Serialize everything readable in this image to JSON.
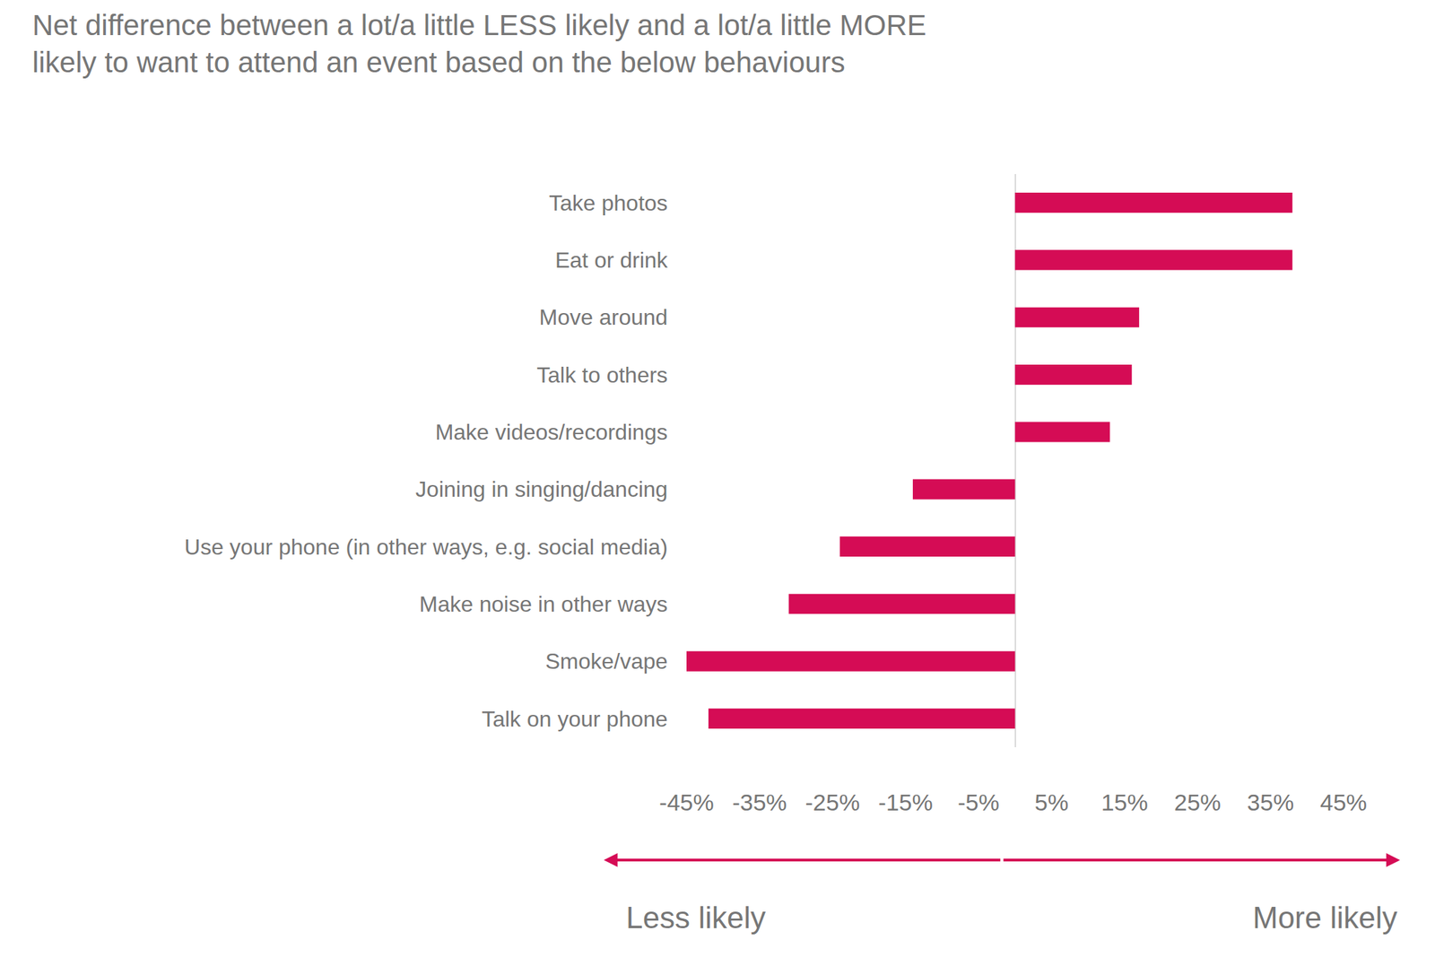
{
  "chart_data": {
    "type": "bar",
    "orientation": "horizontal",
    "title": "Net difference between a lot/a little LESS likely and a lot/a little MORE\nlikely to want to attend an event based on the below behaviours",
    "categories": [
      "Take photos",
      "Eat or drink",
      "Move around",
      "Talk to others",
      "Make videos/recordings",
      "Joining in singing/dancing",
      "Use your phone (in other ways, e.g. social media)",
      "Make noise in other ways",
      "Smoke/vape",
      "Talk on your phone"
    ],
    "values": [
      38,
      38,
      17,
      16,
      13,
      -14,
      -24,
      -31,
      -45,
      -42
    ],
    "color": "#d50c55",
    "xlim": [
      -45,
      45
    ],
    "xticks": [
      {
        "value": -45,
        "label": "-45%"
      },
      {
        "value": -35,
        "label": "-35%"
      },
      {
        "value": -25,
        "label": "-25%"
      },
      {
        "value": -15,
        "label": "-15%"
      },
      {
        "value": -5,
        "label": "-5%"
      },
      {
        "value": 5,
        "label": "5%"
      },
      {
        "value": 15,
        "label": "15%"
      },
      {
        "value": 25,
        "label": "25%"
      },
      {
        "value": 35,
        "label": "35%"
      },
      {
        "value": 45,
        "label": "45%"
      }
    ],
    "grid": false,
    "annotations": [
      "Less likely",
      "More likely"
    ]
  }
}
